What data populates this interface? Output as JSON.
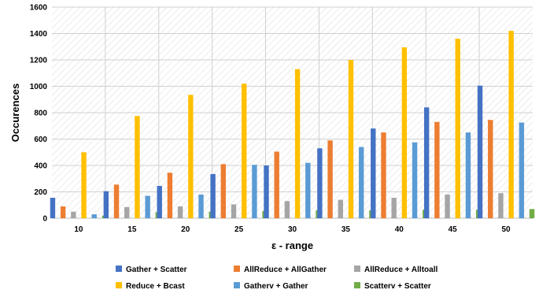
{
  "chart_data": {
    "type": "bar",
    "title": "",
    "xlabel": "ε - range",
    "ylabel": "Occurences",
    "ylim": [
      0,
      1600
    ],
    "yticks": [
      0,
      200,
      400,
      600,
      800,
      1000,
      1200,
      1400,
      1600
    ],
    "grid": "horizontal",
    "legend_position": "bottom",
    "categories": [
      "10",
      "15",
      "20",
      "25",
      "30",
      "35",
      "40",
      "45",
      "50"
    ],
    "series": [
      {
        "name": "Gather + Scatter",
        "color": "#4472C4",
        "values": [
          155,
          205,
          245,
          335,
          400,
          530,
          680,
          840,
          1005
        ]
      },
      {
        "name": "AllReduce + AllGather",
        "color": "#ED7D31",
        "values": [
          90,
          255,
          345,
          410,
          505,
          590,
          650,
          730,
          745
        ]
      },
      {
        "name": "AllReduce + Alltoall",
        "color": "#A5A5A5",
        "values": [
          50,
          85,
          90,
          105,
          130,
          140,
          155,
          180,
          190
        ]
      },
      {
        "name": "Reduce + Bcast",
        "color": "#FFC000",
        "values": [
          500,
          775,
          935,
          1020,
          1130,
          1200,
          1295,
          1360,
          1420
        ]
      },
      {
        "name": "Gatherv + Gather",
        "color": "#5B9BD5",
        "values": [
          30,
          170,
          180,
          405,
          420,
          540,
          575,
          650,
          725
        ]
      },
      {
        "name": "Scatterv + Scatter",
        "color": "#70AD47",
        "values": [
          20,
          45,
          50,
          55,
          60,
          60,
          65,
          65,
          70
        ]
      }
    ]
  }
}
